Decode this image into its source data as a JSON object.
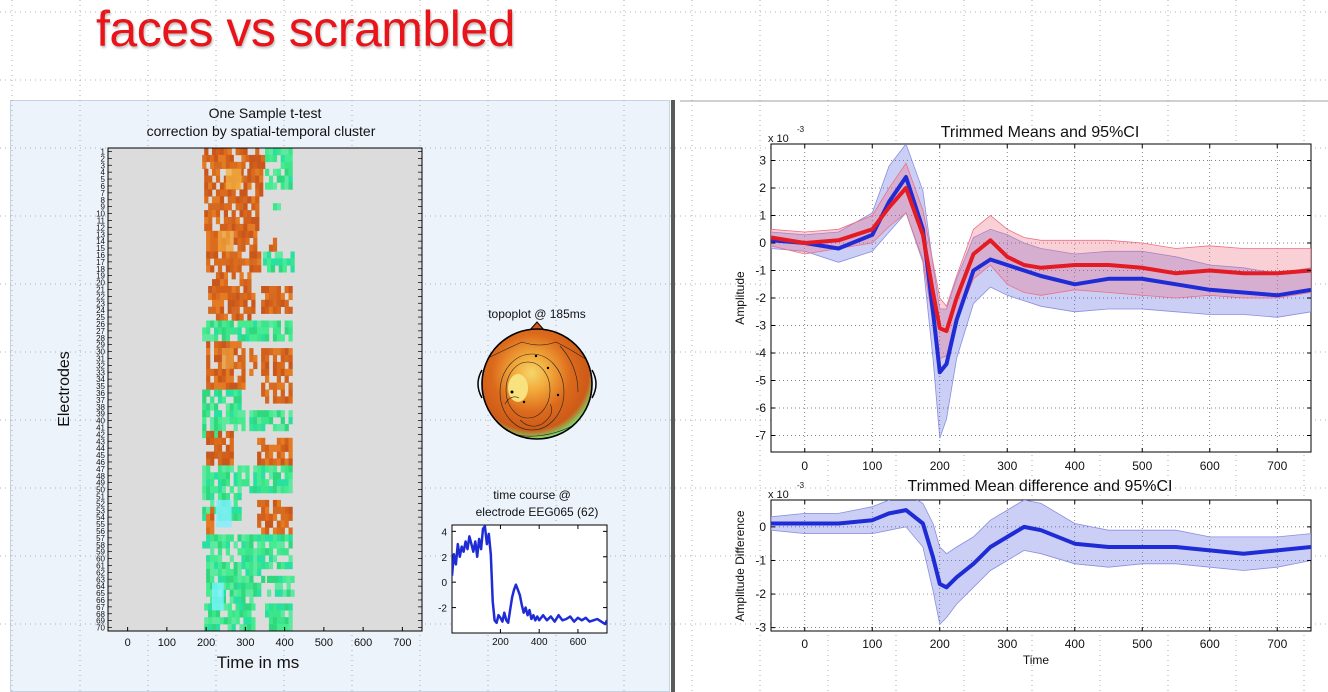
{
  "slide": {
    "title": "faces vs scrambled"
  },
  "colors": {
    "title": "#e8141a",
    "blue": "#1f2cd6",
    "red": "#e51b24",
    "orange": "#d7661a",
    "green": "#2ee27a"
  },
  "chart_data": [
    {
      "type": "heatmap",
      "title": "One Sample t-test",
      "subtitle": "correction by spatial-temporal cluster",
      "xlabel": "Time in ms",
      "ylabel": "Electrodes",
      "x_ticks": [
        "0",
        "100",
        "200",
        "300",
        "400",
        "500",
        "600",
        "700"
      ],
      "y_ticks": [
        "1",
        "2",
        "3",
        "4",
        "5",
        "6",
        "7",
        "8",
        "9",
        "10",
        "11",
        "12",
        "13",
        "14",
        "15",
        "16",
        "17",
        "18",
        "19",
        "20",
        "21",
        "22",
        "23",
        "24",
        "25",
        "26",
        "27",
        "28",
        "29",
        "30",
        "31",
        "32",
        "33",
        "34",
        "35",
        "36",
        "37",
        "38",
        "39",
        "40",
        "41",
        "42",
        "43",
        "44",
        "45",
        "46",
        "47",
        "48",
        "49",
        "50",
        "51",
        "52",
        "53",
        "54",
        "55",
        "56",
        "57",
        "58",
        "59",
        "60",
        "61",
        "62",
        "63",
        "64",
        "65",
        "66",
        "67",
        "68",
        "69",
        "70"
      ],
      "xlim": [
        -50,
        750
      ],
      "ylim": [
        1,
        70
      ]
    },
    {
      "type": "topoplot",
      "title": "topoplot @ 185ms"
    },
    {
      "type": "line",
      "title": "time course @",
      "subtitle": "electrode EEG065 (62)",
      "x_ticks": [
        "200",
        "400",
        "600"
      ],
      "y_ticks": [
        "4",
        "2",
        "0",
        "-2"
      ],
      "xlim": [
        -50,
        750
      ],
      "ylim": [
        -4,
        4.5
      ],
      "series": [
        {
          "color": "#1f2cd6",
          "x": [
            -50,
            -40,
            -30,
            -20,
            -10,
            0,
            10,
            20,
            30,
            40,
            50,
            60,
            70,
            80,
            90,
            100,
            110,
            120,
            130,
            140,
            150,
            160,
            170,
            180,
            190,
            200,
            210,
            220,
            230,
            240,
            250,
            260,
            270,
            280,
            290,
            300,
            310,
            320,
            330,
            340,
            350,
            360,
            370,
            380,
            390,
            400,
            420,
            440,
            460,
            480,
            500,
            520,
            540,
            560,
            580,
            600,
            620,
            640,
            660,
            680,
            700,
            720,
            740,
            750
          ],
          "values": [
            0.5,
            2.2,
            1.4,
            3.0,
            2.0,
            2.8,
            2.4,
            3.2,
            2.6,
            3.6,
            3.0,
            2.4,
            3.2,
            2.0,
            3.4,
            2.6,
            4.2,
            4.4,
            3.0,
            3.8,
            2.2,
            -1.5,
            -3.0,
            -3.2,
            -2.6,
            -2.8,
            -3.1,
            -2.4,
            -3.0,
            -3.2,
            -2.2,
            -1.2,
            -0.6,
            -0.2,
            -0.6,
            -1.0,
            -1.8,
            -2.4,
            -2.0,
            -2.6,
            -2.2,
            -2.9,
            -2.6,
            -3.0,
            -2.7,
            -3.0,
            -2.6,
            -3.0,
            -2.7,
            -3.1,
            -2.6,
            -3.0,
            -2.9,
            -2.7,
            -3.1,
            -2.8,
            -3.0,
            -2.8,
            -3.1,
            -3.0,
            -2.9,
            -3.1,
            -3.3,
            -3.0
          ]
        }
      ]
    },
    {
      "type": "line",
      "title": "Trimmed Means and 95%CI",
      "xlabel": "",
      "ylabel": "Amplitude",
      "scale_note": "x 10",
      "scale_exponent": "-3",
      "x_ticks": [
        "0",
        "100",
        "200",
        "300",
        "400",
        "500",
        "600",
        "700"
      ],
      "y_ticks": [
        "3",
        "2",
        "1",
        "0",
        "-1",
        "-2",
        "-3",
        "-4",
        "-5",
        "-6",
        "-7"
      ],
      "xlim": [
        -50,
        750
      ],
      "ylim": [
        -7.6,
        3.6
      ],
      "grid": true,
      "series": [
        {
          "color": "#1f2cd6",
          "x": [
            -50,
            0,
            50,
            100,
            125,
            150,
            175,
            190,
            200,
            210,
            225,
            250,
            275,
            300,
            325,
            350,
            400,
            450,
            500,
            550,
            600,
            650,
            700,
            750
          ],
          "values": [
            0.1,
            0.0,
            -0.2,
            0.3,
            1.5,
            2.4,
            0.5,
            -2.5,
            -4.7,
            -4.4,
            -2.8,
            -1.0,
            -0.6,
            -0.8,
            -1.0,
            -1.2,
            -1.5,
            -1.3,
            -1.3,
            -1.5,
            -1.7,
            -1.8,
            -1.9,
            -1.7
          ],
          "ci_low": [
            -0.2,
            -0.3,
            -0.7,
            -0.3,
            0.4,
            1.1,
            -0.7,
            -4.2,
            -7.1,
            -6.4,
            -4.2,
            -2.2,
            -1.6,
            -1.9,
            -2.1,
            -2.3,
            -2.5,
            -2.4,
            -2.4,
            -2.5,
            -2.6,
            -2.6,
            -2.7,
            -2.5
          ],
          "ci_high": [
            0.4,
            0.3,
            0.4,
            1.1,
            2.8,
            3.6,
            1.9,
            -0.8,
            -2.4,
            -2.4,
            -1.3,
            0.2,
            0.5,
            0.3,
            0.0,
            -0.2,
            -0.4,
            -0.3,
            -0.3,
            -0.5,
            -0.8,
            -0.9,
            -1.1,
            -0.9
          ]
        },
        {
          "color": "#e51b24",
          "x": [
            -50,
            0,
            50,
            100,
            125,
            150,
            175,
            190,
            200,
            210,
            225,
            250,
            275,
            300,
            325,
            350,
            400,
            450,
            500,
            550,
            600,
            650,
            700,
            750
          ],
          "values": [
            0.2,
            0.0,
            0.1,
            0.5,
            1.3,
            2.0,
            0.3,
            -1.8,
            -3.1,
            -3.2,
            -2.0,
            -0.4,
            0.1,
            -0.5,
            -0.8,
            -0.9,
            -0.8,
            -0.8,
            -0.9,
            -1.1,
            -1.0,
            -1.1,
            -1.1,
            -1.0
          ],
          "ci_low": [
            -0.1,
            -0.4,
            -0.2,
            0.0,
            0.6,
            1.1,
            -0.6,
            -2.9,
            -4.2,
            -4.1,
            -2.8,
            -1.3,
            -0.8,
            -1.5,
            -1.8,
            -1.9,
            -1.7,
            -1.8,
            -1.9,
            -2.0,
            -1.9,
            -2.0,
            -2.0,
            -1.8
          ],
          "ci_high": [
            0.5,
            0.4,
            0.5,
            1.0,
            2.0,
            2.9,
            1.2,
            -0.7,
            -2.0,
            -2.3,
            -1.2,
            0.5,
            1.0,
            0.5,
            0.2,
            0.1,
            0.1,
            0.1,
            0.0,
            -0.2,
            -0.1,
            -0.2,
            -0.2,
            -0.2
          ]
        }
      ]
    },
    {
      "type": "line",
      "title": "Trimmed Mean difference and 95%CI",
      "xlabel": "Time",
      "ylabel": "Amplitude Difference",
      "scale_note": "x 10",
      "scale_exponent": "-3",
      "x_ticks": [
        "0",
        "100",
        "200",
        "300",
        "400",
        "500",
        "600",
        "700"
      ],
      "y_ticks": [
        "0",
        "-1",
        "-2",
        "-3"
      ],
      "xlim": [
        -50,
        750
      ],
      "ylim": [
        -3.1,
        0.8
      ],
      "grid": true,
      "series": [
        {
          "color": "#1f2cd6",
          "x": [
            -50,
            0,
            50,
            100,
            125,
            150,
            175,
            190,
            200,
            210,
            225,
            250,
            275,
            300,
            325,
            350,
            400,
            450,
            500,
            550,
            600,
            650,
            700,
            750
          ],
          "values": [
            0.1,
            0.1,
            0.1,
            0.2,
            0.4,
            0.5,
            0.1,
            -0.9,
            -1.7,
            -1.8,
            -1.5,
            -1.1,
            -0.6,
            -0.3,
            0.0,
            -0.1,
            -0.5,
            -0.6,
            -0.6,
            -0.6,
            -0.7,
            -0.8,
            -0.7,
            -0.6
          ],
          "ci_low": [
            -0.1,
            -0.2,
            -0.2,
            -0.2,
            -0.1,
            0.0,
            -0.6,
            -1.9,
            -2.9,
            -2.7,
            -2.3,
            -1.8,
            -1.3,
            -1.0,
            -0.7,
            -0.8,
            -1.1,
            -1.2,
            -1.1,
            -1.1,
            -1.2,
            -1.3,
            -1.2,
            -1.0
          ],
          "ci_high": [
            0.3,
            0.4,
            0.4,
            0.6,
            0.8,
            1.0,
            0.7,
            0.1,
            -0.6,
            -0.8,
            -0.6,
            -0.3,
            0.2,
            0.5,
            0.8,
            0.7,
            0.1,
            -0.1,
            -0.1,
            -0.1,
            -0.3,
            -0.3,
            -0.3,
            -0.2
          ]
        }
      ]
    }
  ]
}
